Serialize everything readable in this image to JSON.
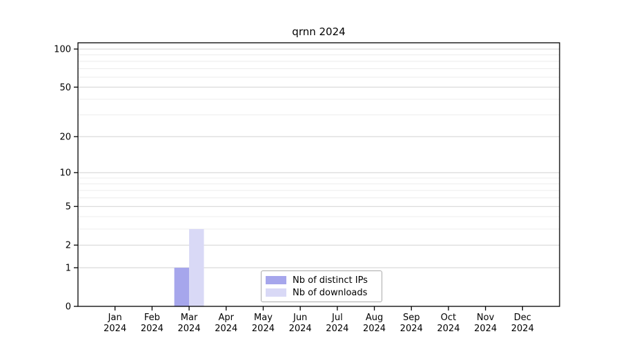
{
  "chart_data": {
    "type": "bar",
    "title": "qrnn 2024",
    "categories": [
      "Jan\n2024",
      "Feb\n2024",
      "Mar\n2024",
      "Apr\n2024",
      "May\n2024",
      "Jun\n2024",
      "Jul\n2024",
      "Aug\n2024",
      "Sep\n2024",
      "Oct\n2024",
      "Nov\n2024",
      "Dec\n2024"
    ],
    "series": [
      {
        "name": "Nb of distinct IPs",
        "color": "#a6a6ec",
        "values": [
          0,
          0,
          1,
          0,
          0,
          0,
          0,
          0,
          0,
          0,
          0,
          0
        ]
      },
      {
        "name": "Nb of downloads",
        "color": "#d9d9f6",
        "values": [
          0,
          0,
          3,
          0,
          0,
          0,
          0,
          0,
          0,
          0,
          0,
          0
        ]
      }
    ],
    "y_axis": {
      "scale": "log1p",
      "tick_values": [
        0,
        1,
        2,
        5,
        10,
        20,
        50,
        100
      ],
      "tick_labels": [
        "0",
        "1",
        "2",
        "5",
        "10",
        "20",
        "50",
        "100"
      ],
      "minor_gridline_values": [
        3,
        4,
        6,
        7,
        8,
        9,
        30,
        40,
        60,
        70,
        80,
        90
      ],
      "max": 112
    },
    "xlabel": "",
    "ylabel": "",
    "grid": {
      "major_color": "#d2d2d2",
      "minor_color": "#ececec",
      "on": true
    },
    "axis_color": "#000000",
    "legend": {
      "position": "lower center",
      "border_color": "#a9a9a9"
    }
  }
}
